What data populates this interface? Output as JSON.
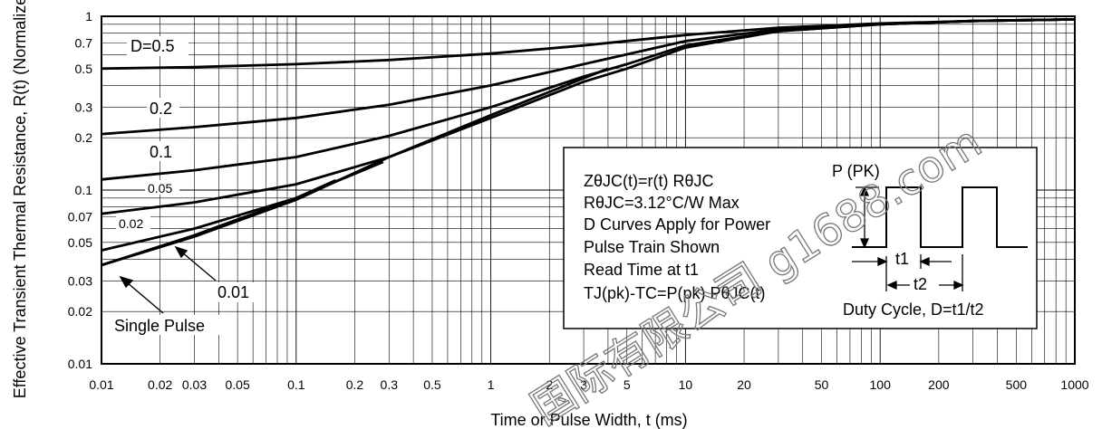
{
  "chart_data": {
    "type": "line",
    "xlabel": "Time or Pulse Width, t (ms)",
    "ylabel": "Effective Transient Thermal Resistance, R(t)  (Normalized)",
    "xscale": "log",
    "yscale": "log",
    "xlim": [
      0.01,
      1000
    ],
    "ylim": [
      0.01,
      1
    ],
    "grid": true,
    "x_tick_labels": [
      "0.01",
      "0.02",
      "0.03",
      "0.05",
      "0.1",
      "0.2",
      "0.3",
      "0.5",
      "1",
      "2",
      "3",
      "5",
      "10",
      "20",
      "50",
      "100",
      "200",
      "500",
      "1000"
    ],
    "y_tick_labels": [
      "1",
      "0.7",
      "0.5",
      "0.3",
      "0.2",
      "0.1",
      "0.07",
      "0.05",
      "0.03",
      "0.02",
      "0.01"
    ],
    "series": [
      {
        "name": "D=0.5",
        "x": [
          0.01,
          0.03,
          0.1,
          0.3,
          1,
          3,
          10,
          30,
          100,
          300,
          1000
        ],
        "y": [
          0.5,
          0.51,
          0.53,
          0.56,
          0.61,
          0.68,
          0.78,
          0.86,
          0.91,
          0.94,
          0.96
        ]
      },
      {
        "name": "0.2",
        "x": [
          0.01,
          0.03,
          0.1,
          0.3,
          1,
          3,
          10,
          30,
          100,
          300,
          1000
        ],
        "y": [
          0.21,
          0.23,
          0.26,
          0.31,
          0.4,
          0.53,
          0.72,
          0.84,
          0.9,
          0.94,
          0.96
        ]
      },
      {
        "name": "0.1",
        "x": [
          0.01,
          0.03,
          0.1,
          0.3,
          1,
          3,
          5,
          10,
          30,
          100,
          300,
          1000
        ],
        "y": [
          0.115,
          0.13,
          0.155,
          0.205,
          0.3,
          0.45,
          0.53,
          0.68,
          0.82,
          0.9,
          0.94,
          0.96
        ]
      },
      {
        "name": "0.05",
        "x": [
          0.01,
          0.03,
          0.1,
          0.3,
          1,
          3,
          5,
          10,
          30,
          100,
          300,
          1000
        ],
        "y": [
          0.073,
          0.085,
          0.108,
          0.155,
          0.26,
          0.42,
          0.5,
          0.66,
          0.82,
          0.9,
          0.94,
          0.96
        ]
      },
      {
        "name": "0.02",
        "x": [
          0.01,
          0.03,
          0.1,
          0.28
        ],
        "y": [
          0.045,
          0.06,
          0.09,
          0.145
        ]
      },
      {
        "name": "0.01",
        "x": [
          0.01,
          0.03,
          0.1,
          0.16
        ],
        "y": [
          0.037,
          0.055,
          0.09,
          0.114
        ]
      },
      {
        "name": "Single Pulse",
        "x": [
          0.01,
          0.03,
          0.1,
          0.3,
          1,
          3,
          4
        ],
        "y": [
          0.037,
          0.054,
          0.088,
          0.155,
          0.27,
          0.44,
          0.5
        ]
      }
    ],
    "curve_labels": [
      "D=0.5",
      "0.2",
      "0.1",
      "0.05",
      "0.02",
      "0.01",
      "Single Pulse"
    ],
    "annotation_box": {
      "lines": [
        "ZθJC(t)=r(t) RθJC",
        "RθJC=3.12°C/W Max",
        "D Curves Apply for Power",
        "Pulse Train Shown",
        "Read Time at t1",
        "TJ(pk)-TC=P(pk) PθJC(t)"
      ],
      "pulse_label": "P (PK)",
      "t1_label": "t1",
      "t2_label": "t2",
      "duty_cycle": "Duty Cycle, D=t1/t2"
    }
  },
  "watermark": "国际有限公司 g1688.com"
}
